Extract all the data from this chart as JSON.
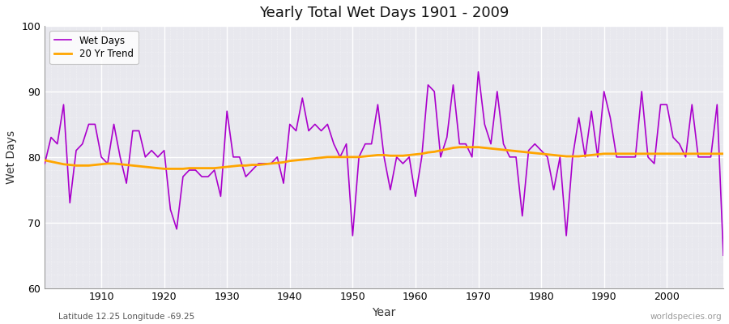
{
  "title": "Yearly Total Wet Days 1901 - 2009",
  "xlabel": "Year",
  "ylabel": "Wet Days",
  "lat_lon_label": "Latitude 12.25 Longitude -69.25",
  "watermark": "worldspecies.org",
  "wet_days_color": "#aa00cc",
  "trend_color": "#FFA500",
  "fig_bg_color": "#ffffff",
  "plot_bg_color": "#e8e8ee",
  "ylim": [
    60,
    100
  ],
  "xlim": [
    1901,
    2009
  ],
  "years": [
    1901,
    1902,
    1903,
    1904,
    1905,
    1906,
    1907,
    1908,
    1909,
    1910,
    1911,
    1912,
    1913,
    1914,
    1915,
    1916,
    1917,
    1918,
    1919,
    1920,
    1921,
    1922,
    1923,
    1924,
    1925,
    1926,
    1927,
    1928,
    1929,
    1930,
    1931,
    1932,
    1933,
    1934,
    1935,
    1936,
    1937,
    1938,
    1939,
    1940,
    1941,
    1942,
    1943,
    1944,
    1945,
    1946,
    1947,
    1948,
    1949,
    1950,
    1951,
    1952,
    1953,
    1954,
    1955,
    1956,
    1957,
    1958,
    1959,
    1960,
    1961,
    1962,
    1963,
    1964,
    1965,
    1966,
    1967,
    1968,
    1969,
    1970,
    1971,
    1972,
    1973,
    1974,
    1975,
    1976,
    1977,
    1978,
    1979,
    1980,
    1981,
    1982,
    1983,
    1984,
    1985,
    1986,
    1987,
    1988,
    1989,
    1990,
    1991,
    1992,
    1993,
    1994,
    1995,
    1996,
    1997,
    1998,
    1999,
    2000,
    2001,
    2002,
    2003,
    2004,
    2005,
    2006,
    2007,
    2008,
    2009
  ],
  "wet_days": [
    79,
    83,
    82,
    88,
    73,
    81,
    82,
    85,
    85,
    80,
    79,
    85,
    80,
    76,
    84,
    84,
    80,
    81,
    80,
    81,
    72,
    69,
    77,
    78,
    78,
    77,
    77,
    78,
    74,
    87,
    80,
    80,
    77,
    78,
    79,
    79,
    79,
    80,
    76,
    85,
    84,
    89,
    84,
    85,
    84,
    85,
    82,
    80,
    82,
    68,
    80,
    82,
    82,
    88,
    80,
    75,
    80,
    79,
    80,
    74,
    80,
    91,
    90,
    80,
    83,
    91,
    82,
    82,
    80,
    93,
    85,
    82,
    90,
    82,
    80,
    80,
    71,
    81,
    82,
    81,
    80,
    75,
    80,
    68,
    80,
    86,
    80,
    87,
    80,
    90,
    86,
    80,
    80,
    80,
    80,
    90,
    80,
    79,
    88,
    88,
    83,
    82,
    80,
    88,
    80,
    80,
    80,
    88,
    65
  ],
  "trend": [
    79.5,
    79.3,
    79.1,
    78.9,
    78.8,
    78.7,
    78.7,
    78.7,
    78.8,
    78.9,
    79.0,
    79.0,
    78.9,
    78.8,
    78.7,
    78.6,
    78.5,
    78.4,
    78.3,
    78.2,
    78.2,
    78.2,
    78.2,
    78.3,
    78.3,
    78.3,
    78.3,
    78.3,
    78.4,
    78.5,
    78.6,
    78.7,
    78.7,
    78.8,
    78.8,
    78.9,
    79.0,
    79.1,
    79.2,
    79.4,
    79.5,
    79.6,
    79.7,
    79.8,
    79.9,
    80.0,
    80.0,
    80.0,
    80.0,
    80.0,
    80.0,
    80.1,
    80.2,
    80.3,
    80.3,
    80.2,
    80.2,
    80.2,
    80.3,
    80.4,
    80.5,
    80.7,
    80.8,
    81.0,
    81.2,
    81.4,
    81.5,
    81.5,
    81.5,
    81.5,
    81.4,
    81.3,
    81.2,
    81.1,
    81.0,
    80.9,
    80.8,
    80.7,
    80.6,
    80.5,
    80.4,
    80.3,
    80.2,
    80.1,
    80.1,
    80.1,
    80.2,
    80.3,
    80.4,
    80.5,
    80.5,
    80.5,
    80.5,
    80.5,
    80.5,
    80.5,
    80.5,
    80.5,
    80.5,
    80.5,
    80.5,
    80.5,
    80.5,
    80.5,
    80.5,
    80.5,
    80.5,
    80.5,
    80.5
  ]
}
